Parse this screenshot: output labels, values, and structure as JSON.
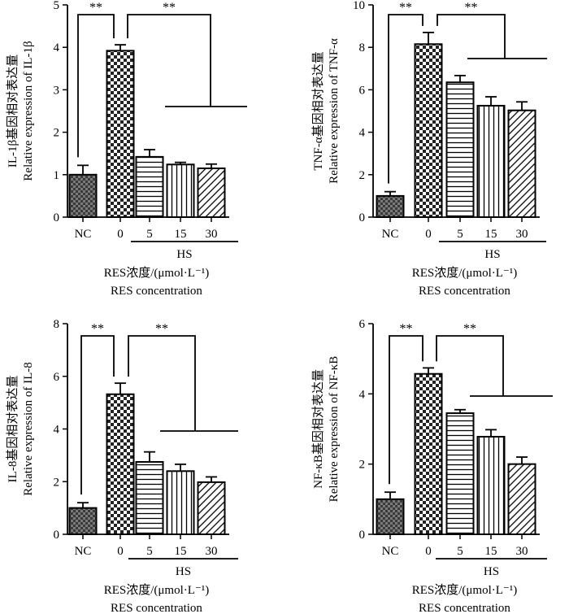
{
  "chart_data": [
    {
      "type": "bar",
      "categories": [
        "NC",
        "0",
        "5",
        "15",
        "30"
      ],
      "values": [
        1.0,
        3.92,
        1.42,
        1.24,
        1.15
      ],
      "errors": [
        0.22,
        0.14,
        0.17,
        0.05,
        0.1
      ],
      "ylim": [
        0,
        5
      ],
      "yticks": [
        "0",
        "1",
        "2",
        "3",
        "4",
        "5"
      ],
      "ylabel_cn": "IL-1β基因相对表达量",
      "ylabel_en": "Relative expression of IL-1β",
      "group_label": "HS",
      "xlabel_cn": "RES浓度/(μmol·L⁻¹)",
      "xlabel_en": "RES concentration",
      "significance": [
        "**",
        "**"
      ]
    },
    {
      "type": "bar",
      "categories": [
        "NC",
        "0",
        "5",
        "15",
        "30"
      ],
      "values": [
        1.0,
        8.15,
        6.35,
        5.25,
        5.03
      ],
      "errors": [
        0.2,
        0.55,
        0.32,
        0.42,
        0.4
      ],
      "ylim": [
        0,
        10
      ],
      "yticks": [
        "0",
        "2",
        "4",
        "6",
        "8",
        "10"
      ],
      "ylabel_cn": "TNF-α基因相对表达量",
      "ylabel_en": "Relative expression of TNF-α",
      "group_label": "HS",
      "xlabel_cn": "RES浓度/(μmol·L⁻¹)",
      "xlabel_en": "RES concentration",
      "significance": [
        "**",
        "**"
      ]
    },
    {
      "type": "bar",
      "categories": [
        "NC",
        "0",
        "5",
        "15",
        "30"
      ],
      "values": [
        1.0,
        5.32,
        2.75,
        2.4,
        1.98
      ],
      "errors": [
        0.2,
        0.42,
        0.38,
        0.26,
        0.2
      ],
      "ylim": [
        0,
        8
      ],
      "yticks": [
        "0",
        "2",
        "4",
        "6",
        "8"
      ],
      "ylabel_cn": "IL-8基因相对表达量",
      "ylabel_en": "Relative expression of IL-8",
      "group_label": "HS",
      "xlabel_cn": "RES浓度/(μmol·L⁻¹)",
      "xlabel_en": "RES concentration",
      "significance": [
        "**",
        "**"
      ]
    },
    {
      "type": "bar",
      "categories": [
        "NC",
        "0",
        "5",
        "15",
        "30"
      ],
      "values": [
        1.0,
        4.57,
        3.45,
        2.78,
        2.0
      ],
      "errors": [
        0.2,
        0.17,
        0.1,
        0.2,
        0.2
      ],
      "ylim": [
        0,
        6
      ],
      "yticks": [
        "0",
        "2",
        "4",
        "6"
      ],
      "ylabel_cn": "NF-κB基因相对表达量",
      "ylabel_en": "Relative expression of NF-κB",
      "group_label": "HS",
      "xlabel_cn": "RES浓度/(μmol·L⁻¹)",
      "xlabel_en": "RES concentration",
      "significance": [
        "**",
        "**"
      ]
    }
  ]
}
